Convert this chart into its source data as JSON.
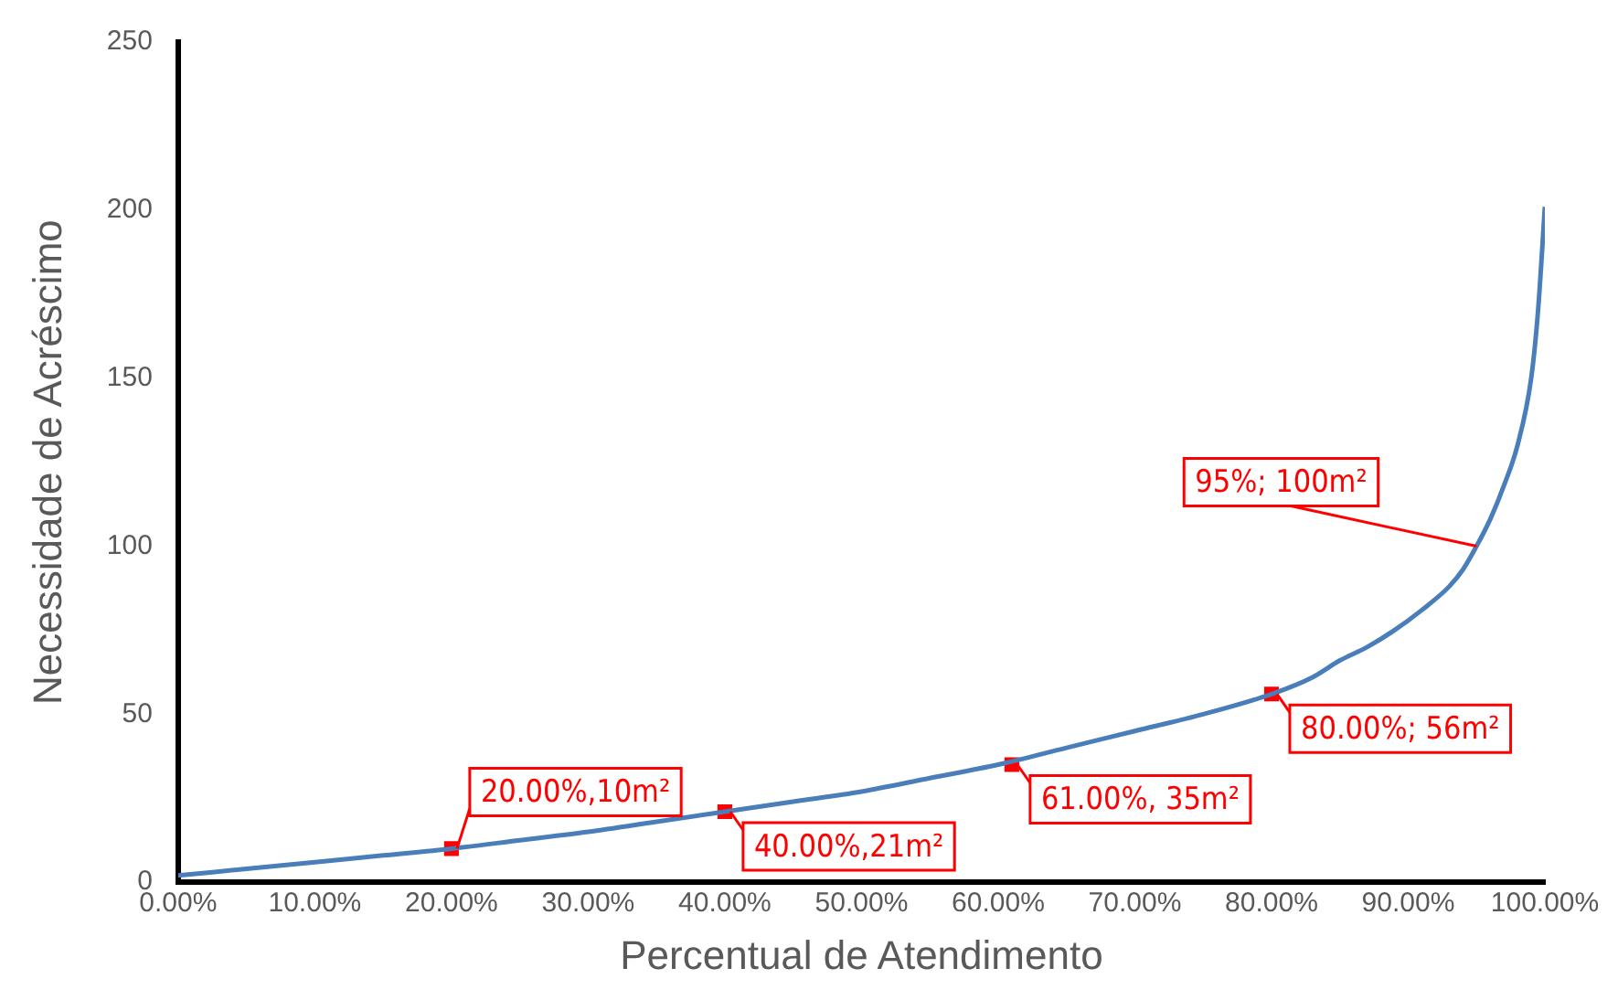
{
  "chart_data": {
    "type": "line",
    "xlabel": "Percentual de Atendimento",
    "ylabel": "Necessidade de Acréscimo",
    "x": [
      0,
      5,
      10,
      15,
      20,
      25,
      30,
      35,
      40,
      45,
      50,
      55,
      60,
      65,
      70,
      75,
      80,
      83,
      85,
      87,
      89,
      91,
      93,
      94,
      95,
      96,
      97,
      98,
      99,
      99.5,
      100
    ],
    "series": [
      {
        "color": "#4a7ebb",
        "values": [
          2,
          4,
          6,
          8,
          10,
          12.5,
          15,
          18,
          21,
          24,
          27,
          31,
          35,
          40,
          45,
          50,
          56,
          61,
          66,
          70,
          75,
          81,
          88,
          93,
          100,
          108,
          118,
          130,
          150,
          170,
          201
        ]
      },
      {
        "type": "scatter",
        "color": "#ff0000",
        "marker": "square",
        "x": [
          20,
          40,
          61,
          80
        ],
        "values": [
          10,
          21,
          35,
          56
        ]
      }
    ],
    "xlim": [
      0,
      100
    ],
    "xticks": [
      {
        "value": 0,
        "label": "0.00%"
      },
      {
        "value": 10,
        "label": "10.00%"
      },
      {
        "value": 20,
        "label": "20.00%"
      },
      {
        "value": 30,
        "label": "30.00%"
      },
      {
        "value": 40,
        "label": "40.00%"
      },
      {
        "value": 50,
        "label": "50.00%"
      },
      {
        "value": 60,
        "label": "60.00%"
      },
      {
        "value": 70,
        "label": "70.00%"
      },
      {
        "value": 80,
        "label": "80.00%"
      },
      {
        "value": 90,
        "label": "90.00%"
      },
      {
        "value": 100,
        "label": "100.00%"
      }
    ],
    "ylim": [
      0,
      250
    ],
    "yticks": [
      0,
      50,
      100,
      150,
      200,
      250
    ],
    "grid": false,
    "legend": false,
    "marker": "none",
    "annotations": [
      {
        "text": "20.00%,10m²",
        "x": 20,
        "y": 10
      },
      {
        "text": "40.00%,21m²",
        "x": 40,
        "y": 21
      },
      {
        "text": "61.00%, 35m²",
        "x": 61,
        "y": 35
      },
      {
        "text": "80.00%; 56m²",
        "x": 80,
        "y": 56
      },
      {
        "text": "95%; 100m²",
        "x": 95,
        "y": 100
      }
    ]
  }
}
